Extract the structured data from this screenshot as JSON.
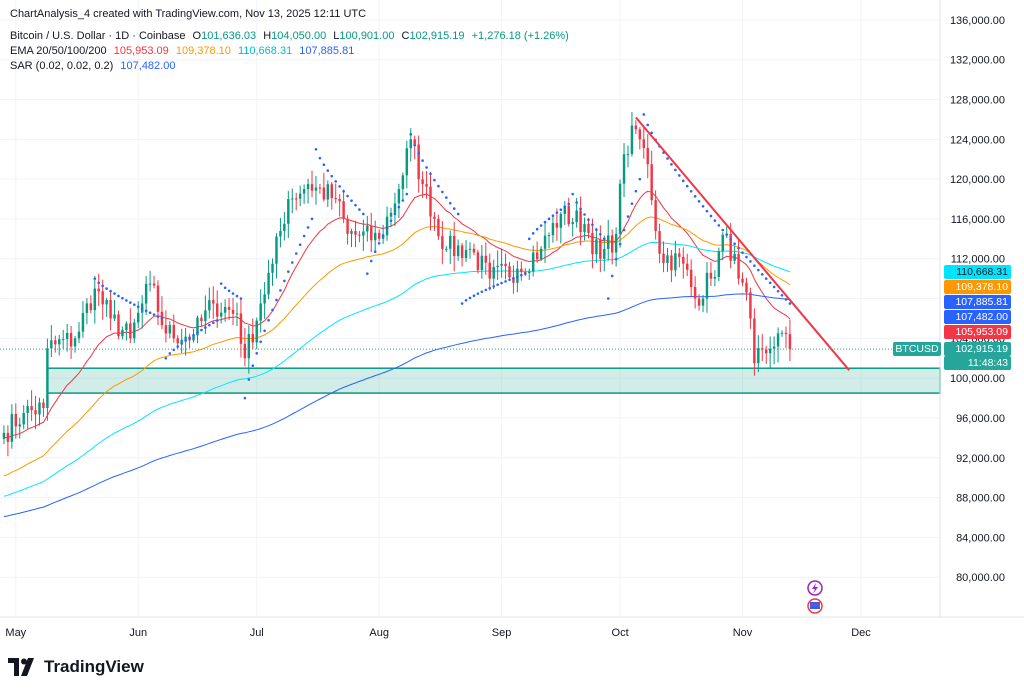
{
  "header": {
    "created": "ChartAnalysis_4 created with TradingView.com, Nov 13, 2025 12:11 UTC",
    "symbol": "Bitcoin / U.S. Dollar · 1D · Coinbase",
    "open_label": "O",
    "open": "101,636.03",
    "high_label": "H",
    "high": "104,050.00",
    "low_label": "L",
    "low": "100,901.00",
    "close_label": "C",
    "close": "102,915.19",
    "change": "+1,276.18 (+1.26%)",
    "ema_label": "EMA 20/50/100/200",
    "ema20": "105,953.09",
    "ema50": "109,378.10",
    "ema100": "110,668.31",
    "ema200": "107,885.81",
    "sar_label": "SAR (0.02, 0.02, 0.2)",
    "sar": "107,482.00"
  },
  "logo": {
    "text": "TradingView"
  },
  "price_tags": [
    {
      "name": "ema100-tag",
      "label": "110,668.31",
      "value": 110668.31,
      "color": "#00e5ff"
    },
    {
      "name": "ema50-tag",
      "label": "109,378.10",
      "value": 109378.1,
      "color": "#ff9800"
    },
    {
      "name": "ema200-tag",
      "label": "107,885.81",
      "value": 107885.81,
      "color": "#2962ff"
    },
    {
      "name": "sar-tag",
      "label": "107,482.00",
      "value": 107482.0,
      "color": "#2962ff"
    },
    {
      "name": "ema20-tag",
      "label": "105,953.09",
      "value": 105953.09,
      "color": "#f23645"
    }
  ],
  "last_price": {
    "symbol": "BTCUSD",
    "price": "102,915.19",
    "countdown": "11:48:43",
    "value": 102915.19,
    "color": "#26a69a"
  },
  "chart_data": {
    "type": "candlestick",
    "symbol": "BTCUSD",
    "interval": "1D",
    "ylim": [
      76000,
      138000
    ],
    "y_ticks": [
      80000,
      84000,
      88000,
      92000,
      96000,
      100000,
      104000,
      108000,
      112000,
      116000,
      120000,
      124000,
      128000,
      132000,
      136000
    ],
    "y_tick_labels": [
      "80,000.00",
      "84,000.00",
      "88,000.00",
      "92,000.00",
      "96,000.00",
      "100,000.00",
      "104,000.00",
      "108,000.00",
      "112,000.00",
      "116,000.00",
      "120,000.00",
      "124,000.00",
      "128,000.00",
      "132,000.00",
      "136,000.00"
    ],
    "x_labels": [
      {
        "label": "May",
        "day": 0
      },
      {
        "label": "Jun",
        "day": 31
      },
      {
        "label": "Jul",
        "day": 61
      },
      {
        "label": "Aug",
        "day": 92
      },
      {
        "label": "Sep",
        "day": 123
      },
      {
        "label": "Oct",
        "day": 153
      },
      {
        "label": "Nov",
        "day": 184
      },
      {
        "label": "Dec",
        "day": 214
      }
    ],
    "x_range_days": [
      -4,
      234
    ],
    "up_color": "#089981",
    "down_color": "#f23645",
    "anchors": [
      [
        -3,
        94500
      ],
      [
        2,
        96500
      ],
      [
        7,
        97000
      ],
      [
        8,
        103000
      ],
      [
        15,
        104000
      ],
      [
        20,
        109000
      ],
      [
        24,
        106000
      ],
      [
        29,
        104000
      ],
      [
        34,
        109500
      ],
      [
        38,
        104500
      ],
      [
        45,
        104300
      ],
      [
        50,
        107500
      ],
      [
        56,
        106500
      ],
      [
        58,
        102000
      ],
      [
        62,
        107500
      ],
      [
        65,
        111500
      ],
      [
        69,
        118000
      ],
      [
        74,
        119500
      ],
      [
        81,
        118000
      ],
      [
        84,
        114500
      ],
      [
        92,
        114000
      ],
      [
        97,
        119000
      ],
      [
        100,
        124000
      ],
      [
        103,
        119500
      ],
      [
        109,
        113000
      ],
      [
        115,
        113000
      ],
      [
        120,
        110000
      ],
      [
        127,
        111000
      ],
      [
        133,
        113000
      ],
      [
        138,
        116500
      ],
      [
        144,
        115500
      ],
      [
        148,
        112000
      ],
      [
        152,
        114500
      ],
      [
        154,
        122500
      ],
      [
        157,
        125000
      ],
      [
        160,
        121500
      ],
      [
        163,
        112500
      ],
      [
        169,
        111500
      ],
      [
        172,
        108000
      ],
      [
        176,
        110000
      ],
      [
        180,
        114500
      ],
      [
        183,
        110000
      ],
      [
        186,
        106000
      ],
      [
        187,
        101500
      ],
      [
        190,
        102500
      ],
      [
        193,
        104500
      ],
      [
        196,
        102900
      ]
    ],
    "sar_segments": [
      {
        "from": 20,
        "to": 37,
        "start": 110000,
        "end": 106000
      },
      {
        "from": 38,
        "to": 51,
        "start": 102000,
        "end": 105800
      },
      {
        "from": 52,
        "to": 57,
        "start": 109500,
        "end": 108000
      },
      {
        "from": 58,
        "to": 75,
        "start": 98000,
        "end": 116000
      },
      {
        "from": 76,
        "to": 88,
        "start": 123000,
        "end": 116500
      },
      {
        "from": 89,
        "to": 99,
        "start": 110500,
        "end": 118500
      },
      {
        "from": 100,
        "to": 112,
        "start": 124500,
        "end": 116500
      },
      {
        "from": 113,
        "to": 129,
        "start": 107500,
        "end": 110500
      },
      {
        "from": 130,
        "to": 140,
        "start": 114000,
        "end": 117500
      },
      {
        "from": 141,
        "to": 149,
        "start": 118500,
        "end": 114000
      },
      {
        "from": 150,
        "to": 158,
        "start": 108000,
        "end": 120000
      },
      {
        "from": 159,
        "to": 196,
        "start": 126500,
        "end": 107500
      }
    ],
    "ema": [
      {
        "name": "EMA 20",
        "color": "#f23645",
        "final": 105953.09
      },
      {
        "name": "EMA 50",
        "color": "#ff9800",
        "final": 109378.1
      },
      {
        "name": "EMA 100",
        "color": "#00e5ff",
        "final": 110668.31
      },
      {
        "name": "EMA 200",
        "color": "#2962ff",
        "final": 107885.81
      }
    ],
    "support_zone": {
      "from_day": 8,
      "low": 98500,
      "high": 101000,
      "color": "#089981"
    },
    "trendline": {
      "x1": 157,
      "y1": 126200,
      "x2": 211,
      "y2": 100800,
      "color": "#f23645"
    },
    "last_price_line": 102915.19
  }
}
